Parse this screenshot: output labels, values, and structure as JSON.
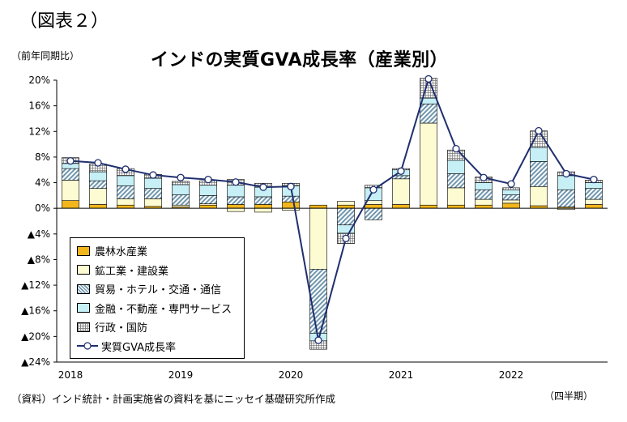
{
  "figure_label": "（図表２）",
  "unit_label": "（前年同期比）",
  "source_note": "（資料）インド統計・計画実施省の資料を基にニッセイ基礎研究所作成",
  "period_note": "（四半期）",
  "colors": {
    "agri": "#f2b61c",
    "mining": "#fdfbd1",
    "trade": "#7fa7bf",
    "finance": "#c6eff6",
    "public": "#ffffff",
    "line": "#1f2f6e"
  },
  "chart_data": {
    "type": "bar",
    "stacked": true,
    "title": "インドの実質GVA成長率（産業別）",
    "ylabel": "（前年同期比）",
    "xlabel": "（四半期）",
    "ylim": [
      -24,
      20
    ],
    "ytick_values": [
      20,
      16,
      12,
      8,
      4,
      0,
      -4,
      -8,
      -12,
      -16,
      -20,
      -24
    ],
    "ytick_labels": [
      "20%",
      "16%",
      "12%",
      "8%",
      "4%",
      "0%",
      "▲4%",
      "▲8%",
      "▲12%",
      "▲16%",
      "▲20%",
      "▲24%"
    ],
    "year_labels": [
      "2018",
      "2019",
      "2020",
      "2021",
      "2022"
    ],
    "year_start_index": [
      0,
      4,
      8,
      12,
      16
    ],
    "categories": [
      "2018Q1",
      "2018Q2",
      "2018Q3",
      "2018Q4",
      "2019Q1",
      "2019Q2",
      "2019Q3",
      "2019Q4",
      "2020Q1",
      "2020Q2",
      "2020Q3",
      "2020Q4",
      "2021Q1",
      "2021Q2",
      "2021Q3",
      "2021Q4",
      "2022Q1",
      "2022Q2",
      "2022Q3",
      "2022Q4"
    ],
    "series": [
      {
        "name": "農林水産業",
        "values": [
          1.2,
          0.6,
          0.5,
          0.3,
          0.2,
          0.5,
          0.6,
          0.6,
          1.0,
          0.5,
          0.5,
          0.6,
          0.6,
          0.5,
          0.5,
          0.5,
          0.8,
          0.4,
          0.2,
          0.6
        ]
      },
      {
        "name": "鉱工業・建設業",
        "values": [
          3.2,
          2.5,
          1.0,
          1.2,
          0.3,
          0.2,
          -0.5,
          -0.6,
          -0.3,
          -9.5,
          0.6,
          0.6,
          4.0,
          12.8,
          2.7,
          0.9,
          0.5,
          3.0,
          -0.2,
          0.8
        ]
      },
      {
        "name": "貿易・ホテル・交通・通信",
        "values": [
          1.8,
          1.2,
          2.0,
          1.6,
          1.6,
          1.3,
          1.2,
          1.2,
          0.9,
          -10.0,
          -2.6,
          -1.8,
          0.5,
          3.0,
          2.2,
          1.5,
          0.8,
          3.9,
          2.7,
          1.7
        ]
      },
      {
        "name": "金融・不動産・専門サービス",
        "values": [
          0.8,
          1.4,
          1.6,
          1.6,
          1.6,
          1.6,
          1.8,
          1.5,
          1.6,
          -1.2,
          -1.3,
          2.0,
          0.9,
          0.9,
          2.1,
          1.1,
          0.8,
          2.2,
          2.2,
          0.9
        ]
      },
      {
        "name": "行政・国防",
        "values": [
          0.9,
          1.2,
          1.1,
          0.6,
          0.5,
          0.7,
          0.9,
          0.6,
          0.4,
          -1.3,
          -1.6,
          0.4,
          0.2,
          3.1,
          1.6,
          0.9,
          0.3,
          2.6,
          0.6,
          0.4
        ]
      }
    ],
    "line": {
      "name": "実質GVA成長率",
      "values": [
        7.4,
        7.1,
        6.1,
        5.2,
        4.8,
        4.5,
        4.1,
        3.3,
        3.4,
        -20.6,
        -4.7,
        2.9,
        5.8,
        20.2,
        9.3,
        4.8,
        3.8,
        12.1,
        5.4,
        4.5
      ]
    }
  }
}
